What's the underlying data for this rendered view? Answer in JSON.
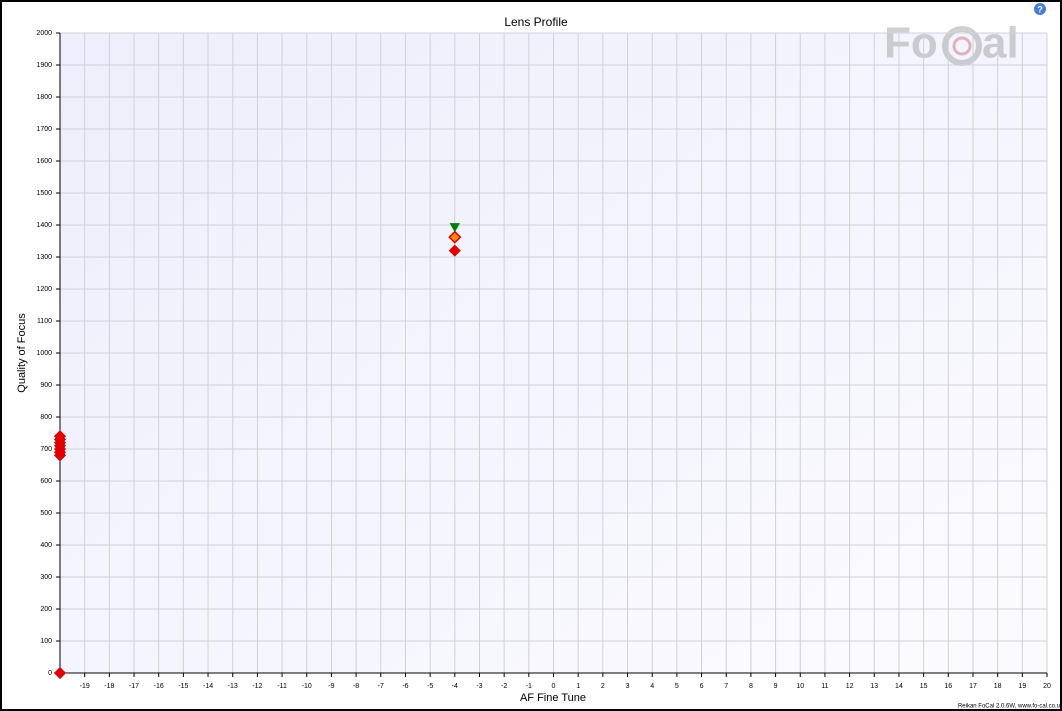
{
  "chart_data": {
    "type": "scatter",
    "title": "Lens Profile",
    "x_label": "AF Fine Tune",
    "y_label": "Quality of Focus",
    "footer": "Reikan FoCal 2.0.6W, www.fo-cal.co.u",
    "logo_left": "Fo",
    "logo_right": "al",
    "help": "?",
    "xlim": [
      -20,
      20
    ],
    "xticks": [
      -19,
      -18,
      -17,
      -16,
      -15,
      -14,
      -13,
      -12,
      -11,
      -10,
      -9,
      -8,
      -7,
      -6,
      -5,
      -4,
      -3,
      -2,
      -1,
      0,
      1,
      2,
      3,
      4,
      5,
      6,
      7,
      8,
      9,
      10,
      11,
      12,
      13,
      14,
      15,
      16,
      17,
      18,
      19,
      20
    ],
    "ylim": [
      0,
      2000
    ],
    "yticks": [
      0,
      100,
      200,
      300,
      400,
      500,
      600,
      700,
      800,
      900,
      1000,
      1100,
      1200,
      1300,
      1400,
      1500,
      1600,
      1700,
      1800,
      1900,
      2000
    ],
    "grid": true,
    "series": [
      {
        "color": "#e00000",
        "marker": "diamond",
        "x": [
          -20,
          -20,
          -20,
          -20,
          -20,
          -20,
          -20,
          -20,
          -4
        ],
        "values": [
          680,
          690,
          700,
          710,
          720,
          730,
          740,
          0,
          1320
        ]
      },
      {
        "color": "#ff8c00",
        "stroke": "#e00000",
        "marker": "diamond",
        "x": [
          -4
        ],
        "values": [
          1362
        ]
      },
      {
        "color": "#008000",
        "marker": "triangle-down",
        "x": [
          -4
        ],
        "values": [
          1392
        ]
      }
    ]
  }
}
